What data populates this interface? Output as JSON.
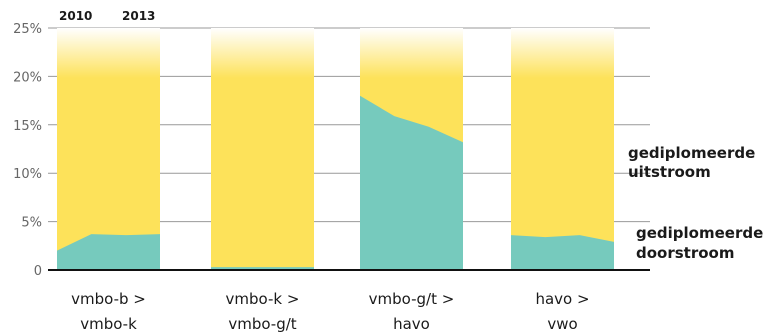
{
  "chart_data": {
    "type": "area",
    "year_labels": [
      "2010",
      "2013"
    ],
    "y_ticks": [
      "0",
      "5%",
      "10%",
      "15%",
      "20%",
      "25%"
    ],
    "ylim": [
      0,
      25
    ],
    "grid": true,
    "categories": [
      {
        "label_line1": "vmbo-b >",
        "label_line2": "vmbo-k",
        "years": [
          2010,
          2011,
          2012,
          2013
        ],
        "values": [
          2.0,
          3.7,
          3.6,
          3.7
        ]
      },
      {
        "label_line1": "vmbo-k >",
        "label_line2": "vmbo-g/t",
        "years": [
          2010,
          2011,
          2012,
          2013
        ],
        "values": [
          0.3,
          0.3,
          0.3,
          0.3
        ]
      },
      {
        "label_line1": "vmbo-g/t >",
        "label_line2": "havo",
        "years": [
          2010,
          2011,
          2012,
          2013
        ],
        "values": [
          18.0,
          15.9,
          14.8,
          13.2
        ]
      },
      {
        "label_line1": "havo >",
        "label_line2": "vwo",
        "years": [
          2010,
          2011,
          2012,
          2013
        ],
        "values": [
          3.6,
          3.4,
          3.6,
          2.9
        ]
      }
    ],
    "series": [
      {
        "name_line1": "gediplomeerde",
        "name_line2": "uitstroom",
        "color": "#FDE25A"
      },
      {
        "name_line1": "gediplomeerde",
        "name_line2": "doorstroom",
        "color": "#76CABD"
      }
    ],
    "colors": {
      "gridline": "#999999",
      "axis": "#111111"
    }
  }
}
